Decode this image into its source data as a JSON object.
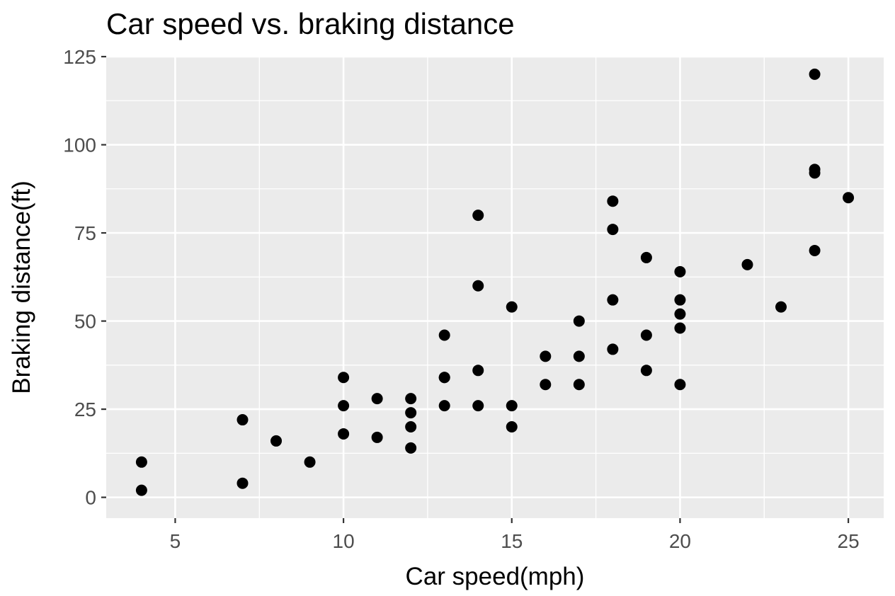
{
  "chart_data": {
    "type": "scatter",
    "title": "Car speed vs. braking distance",
    "xlabel": "Car speed(mph)",
    "ylabel": "Braking distance(ft)",
    "xlim": [
      2.95,
      26.05
    ],
    "ylim": [
      -5.9,
      125
    ],
    "x_ticks": [
      5,
      10,
      15,
      20,
      25
    ],
    "y_ticks": [
      0,
      25,
      50,
      75,
      100,
      125
    ],
    "x_tick_labels": [
      "5",
      "10",
      "15",
      "20",
      "25"
    ],
    "y_tick_labels": [
      "0",
      "25",
      "50",
      "75",
      "100",
      "125"
    ],
    "grid": true,
    "legend": "none",
    "colors": {
      "panel_background": "#ebebeb",
      "grid_line": "#ffffff",
      "point": "#000000",
      "tick_label": "#4d4d4d",
      "tick_mark": "#333333"
    },
    "series": [
      {
        "points": [
          [
            4,
            2
          ],
          [
            4,
            10
          ],
          [
            7,
            4
          ],
          [
            7,
            22
          ],
          [
            8,
            16
          ],
          [
            9,
            10
          ],
          [
            10,
            18
          ],
          [
            10,
            26
          ],
          [
            10,
            34
          ],
          [
            11,
            17
          ],
          [
            11,
            28
          ],
          [
            12,
            14
          ],
          [
            12,
            20
          ],
          [
            12,
            24
          ],
          [
            12,
            28
          ],
          [
            13,
            26
          ],
          [
            13,
            34
          ],
          [
            13,
            34
          ],
          [
            13,
            46
          ],
          [
            14,
            26
          ],
          [
            14,
            36
          ],
          [
            14,
            60
          ],
          [
            14,
            80
          ],
          [
            15,
            20
          ],
          [
            15,
            26
          ],
          [
            15,
            54
          ],
          [
            16,
            32
          ],
          [
            16,
            40
          ],
          [
            17,
            32
          ],
          [
            17,
            40
          ],
          [
            17,
            50
          ],
          [
            18,
            42
          ],
          [
            18,
            56
          ],
          [
            18,
            76
          ],
          [
            18,
            84
          ],
          [
            19,
            36
          ],
          [
            19,
            46
          ],
          [
            19,
            68
          ],
          [
            20,
            32
          ],
          [
            20,
            48
          ],
          [
            20,
            52
          ],
          [
            20,
            56
          ],
          [
            20,
            64
          ],
          [
            22,
            66
          ],
          [
            23,
            54
          ],
          [
            24,
            70
          ],
          [
            24,
            92
          ],
          [
            24,
            93
          ],
          [
            24,
            120
          ],
          [
            25,
            85
          ]
        ]
      }
    ]
  }
}
